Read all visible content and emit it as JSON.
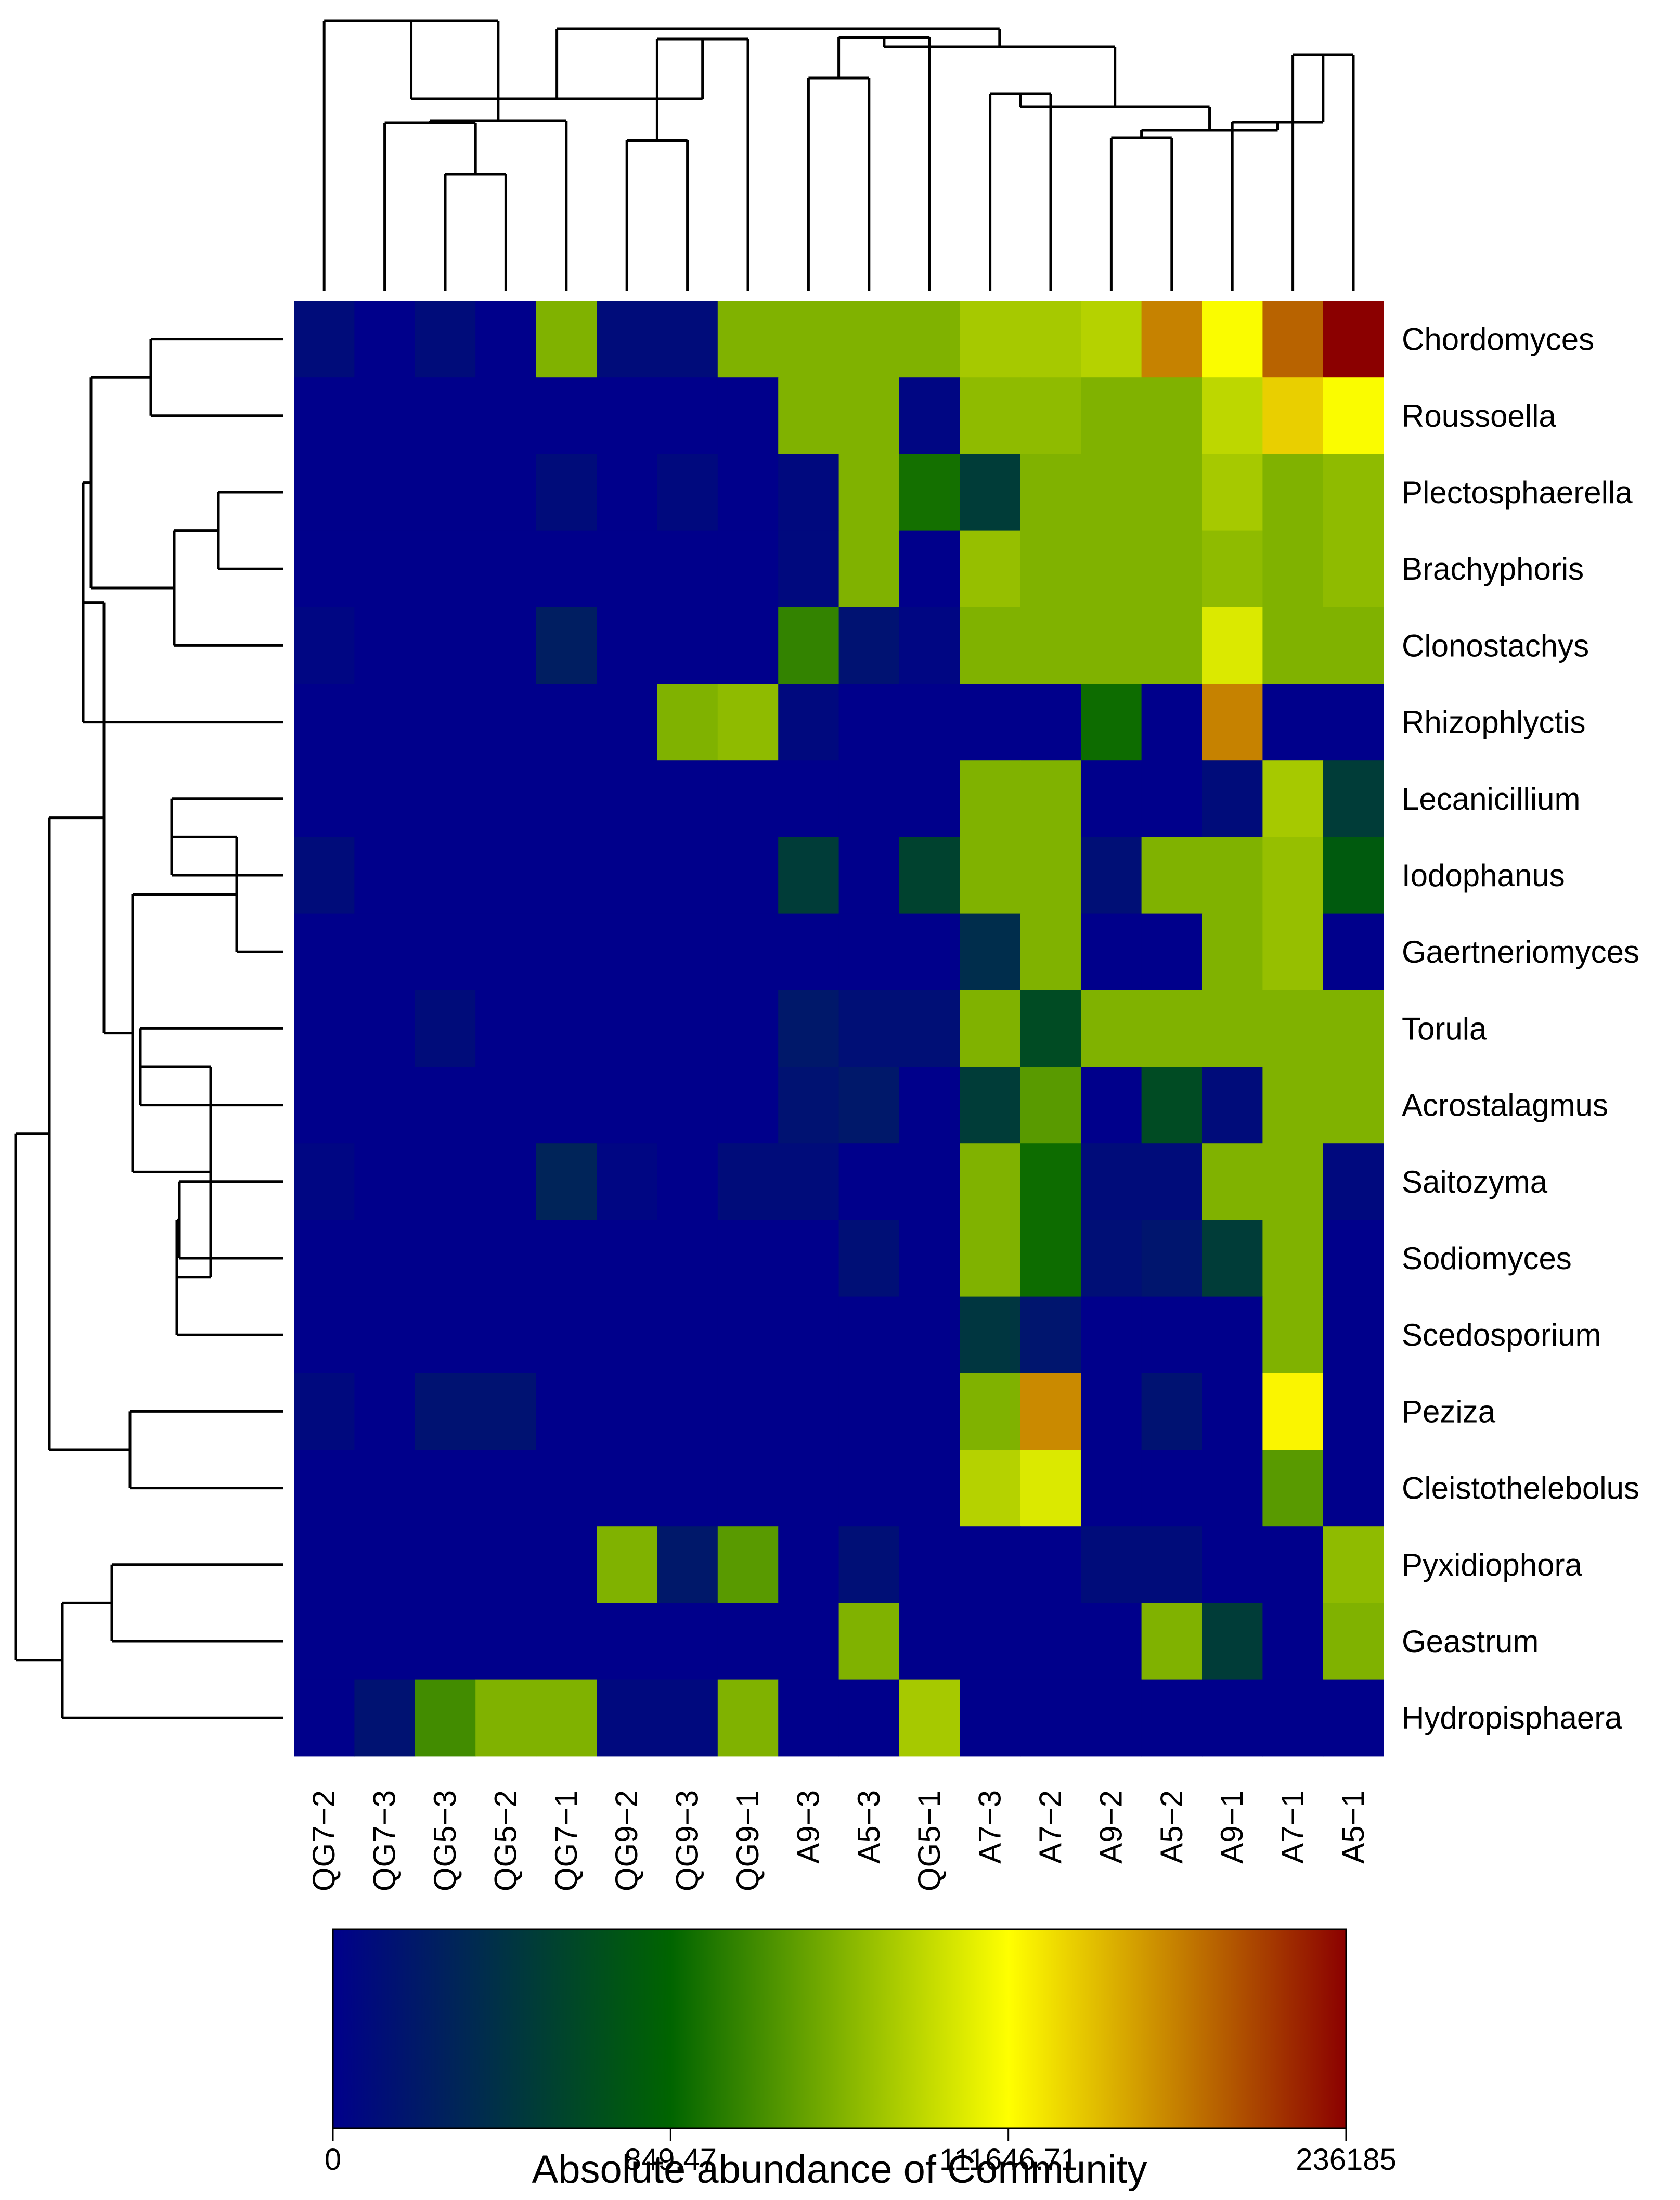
{
  "chart_data": {
    "type": "heatmap",
    "title": "",
    "columns": [
      "QG7−2",
      "QG7−3",
      "QG5−3",
      "QG5−2",
      "QG7−1",
      "QG9−2",
      "QG9−3",
      "QG9−1",
      "A9−3",
      "A5−3",
      "QG5−1",
      "A7−3",
      "A7−2",
      "A9−2",
      "A5−2",
      "A9−1",
      "A7−1",
      "A5−1"
    ],
    "rows": [
      "Chordomyces",
      "Roussoella",
      "Plectosphaerella",
      "Brachyphoris",
      "Clonostachys",
      "Rhizophlyctis",
      "Lecanicillium",
      "Iodophanus",
      "Gaertneriomyces",
      "Torula",
      "Acrostalagmus",
      "Saitozyma",
      "Sodiomyces",
      "Scedosporium",
      "Peziza",
      "Cleistothelebolus",
      "Pyxidiophora",
      "Geastrum",
      "Hydropisphaera"
    ],
    "color_level_values": [
      [
        0.04,
        0,
        0.04,
        0,
        0.5,
        0.04,
        0.04,
        0.5,
        0.5,
        0.5,
        0.5,
        0.55,
        0.55,
        0.57,
        0.83,
        0.66,
        0.87,
        1.0
      ],
      [
        0,
        0,
        0,
        0,
        0,
        0,
        0,
        0,
        0.5,
        0.5,
        0.02,
        0.52,
        0.52,
        0.5,
        0.5,
        0.58,
        0.73,
        0.66
      ],
      [
        0,
        0,
        0,
        0,
        0.04,
        0,
        0.03,
        0,
        0.03,
        0.5,
        0.36,
        0.2,
        0.5,
        0.5,
        0.5,
        0.55,
        0.5,
        0.52
      ],
      [
        0,
        0,
        0,
        0,
        0,
        0,
        0,
        0,
        0.03,
        0.5,
        0,
        0.53,
        0.5,
        0.5,
        0.5,
        0.52,
        0.5,
        0.52
      ],
      [
        0.02,
        0,
        0,
        0,
        0.1,
        0,
        0,
        0,
        0.4,
        0.06,
        0.02,
        0.5,
        0.5,
        0.5,
        0.5,
        0.62,
        0.5,
        0.5
      ],
      [
        0,
        0,
        0,
        0,
        0,
        0,
        0.5,
        0.52,
        0.03,
        0,
        0,
        0,
        0,
        0.35,
        0,
        0.83,
        0,
        0
      ],
      [
        0,
        0,
        0,
        0,
        0,
        0,
        0,
        0,
        0,
        0,
        0,
        0.5,
        0.5,
        0,
        0,
        0.04,
        0.55,
        0.2
      ],
      [
        0.04,
        0,
        0,
        0,
        0,
        0,
        0,
        0,
        0.2,
        0,
        0.22,
        0.5,
        0.5,
        0.05,
        0.5,
        0.5,
        0.53,
        0.3
      ],
      [
        0,
        0,
        0,
        0,
        0,
        0,
        0,
        0,
        0,
        0,
        0,
        0.15,
        0.5,
        0,
        0,
        0.5,
        0.53,
        0
      ],
      [
        0,
        0,
        0.04,
        0,
        0,
        0,
        0,
        0,
        0.08,
        0.05,
        0.05,
        0.5,
        0.25,
        0.5,
        0.5,
        0.5,
        0.5,
        0.5
      ],
      [
        0,
        0,
        0,
        0,
        0,
        0,
        0,
        0,
        0.06,
        0.08,
        0,
        0.2,
        0.45,
        0,
        0.25,
        0.04,
        0.5,
        0.5
      ],
      [
        0.02,
        0,
        0,
        0,
        0.12,
        0.02,
        0,
        0.04,
        0.04,
        0,
        0,
        0.5,
        0.35,
        0.04,
        0.04,
        0.5,
        0.5,
        0.03
      ],
      [
        0,
        0,
        0,
        0,
        0,
        0,
        0,
        0,
        0,
        0.05,
        0,
        0.5,
        0.35,
        0.05,
        0.07,
        0.2,
        0.5,
        0
      ],
      [
        0,
        0,
        0,
        0,
        0,
        0,
        0,
        0,
        0,
        0,
        0,
        0.18,
        0.07,
        0,
        0,
        0,
        0.5,
        0
      ],
      [
        0.03,
        0,
        0.06,
        0.06,
        0,
        0,
        0,
        0,
        0,
        0,
        0,
        0.5,
        0.82,
        0,
        0.06,
        0,
        0.68,
        0
      ],
      [
        0,
        0,
        0,
        0,
        0,
        0,
        0,
        0,
        0,
        0,
        0,
        0.57,
        0.62,
        0,
        0,
        0,
        0.45,
        0
      ],
      [
        0,
        0,
        0,
        0,
        0,
        0.5,
        0.08,
        0.45,
        0,
        0.05,
        0,
        0,
        0,
        0.04,
        0.04,
        0,
        0,
        0.52
      ],
      [
        0,
        0,
        0,
        0,
        0,
        0,
        0,
        0,
        0,
        0.5,
        0,
        0,
        0,
        0,
        0.5,
        0.2,
        0,
        0.5
      ],
      [
        0,
        0.06,
        0.42,
        0.5,
        0.5,
        0.03,
        0.03,
        0.5,
        0,
        0,
        0.55,
        0,
        0,
        0,
        0,
        0,
        0,
        0
      ]
    ],
    "legend": {
      "title": "Absolute abundance of Community",
      "tick_labels": [
        "0",
        "849.47",
        "111646.71",
        "236185"
      ],
      "colors": [
        "#00008B",
        "#006400",
        "#FFFF00",
        "#8B0000"
      ]
    },
    "column_dendrogram": true,
    "row_dendrogram": true
  }
}
